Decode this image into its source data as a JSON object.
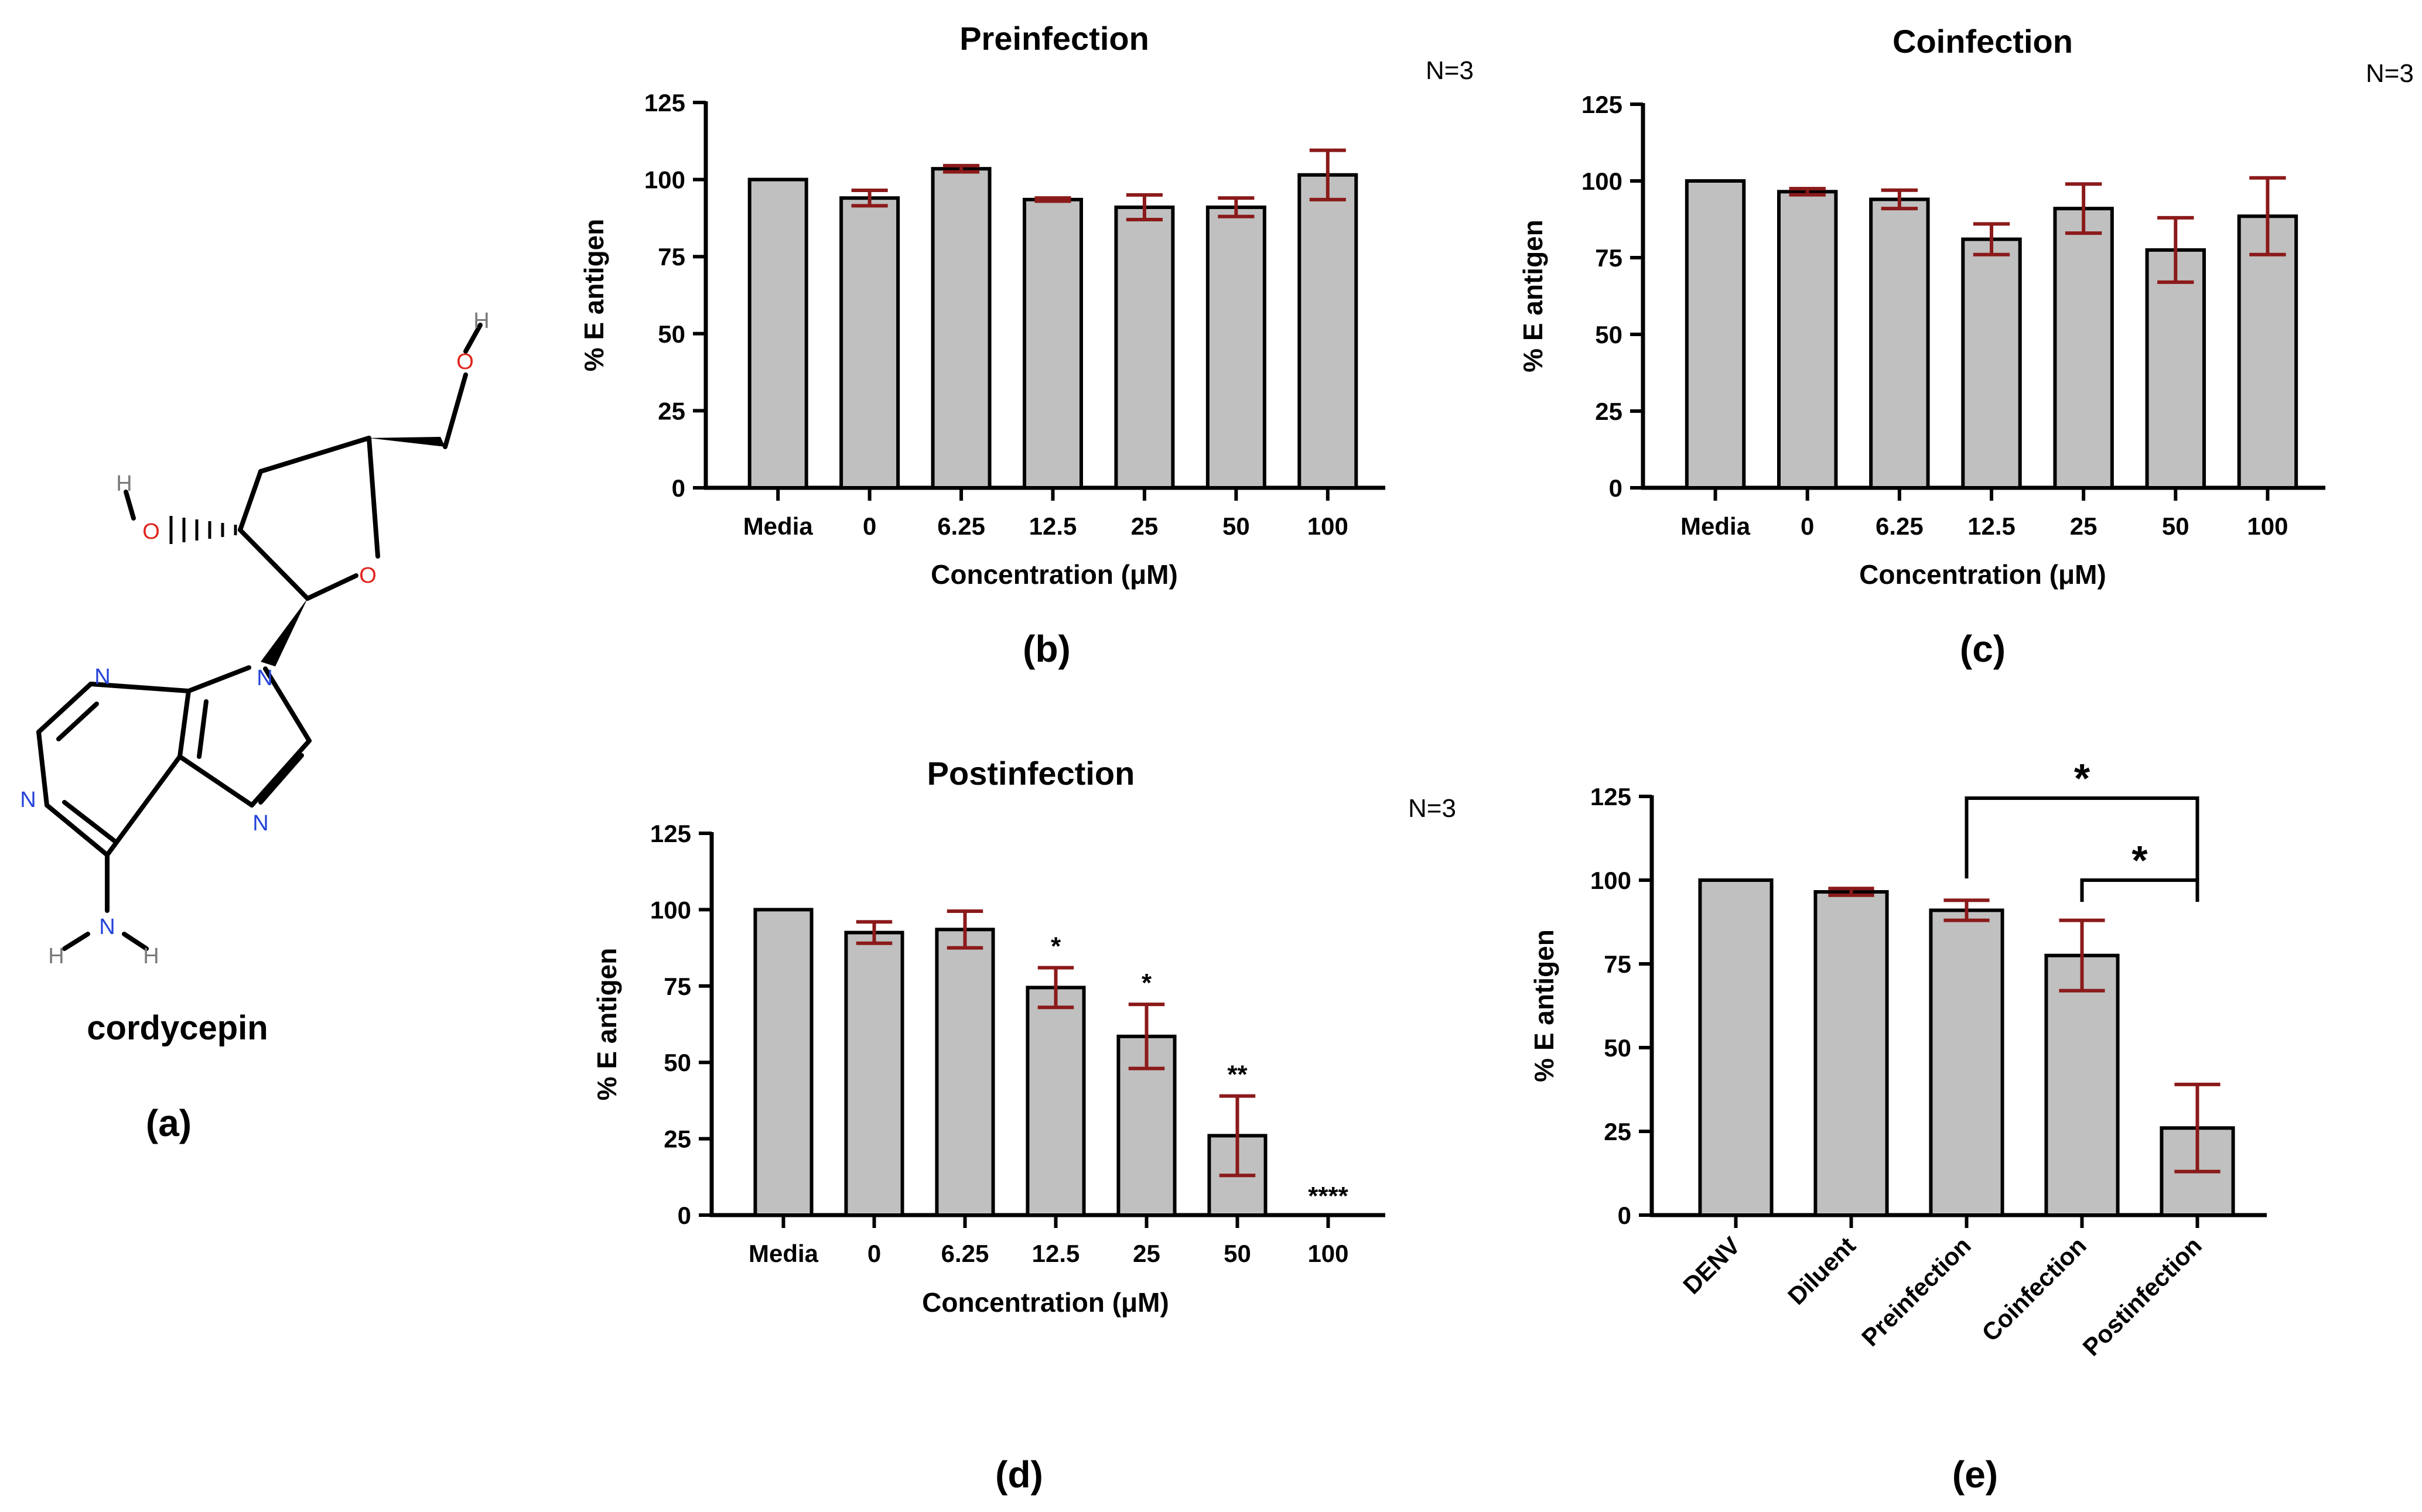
{
  "colors": {
    "bar_fill": "#c0c0c0",
    "bar_stroke": "#000000",
    "error_bar": "#8b1a1a",
    "axis": "#000000",
    "atom_O": "#e0241b",
    "atom_N": "#2342d9",
    "atom_H": "#7a7a7a"
  },
  "molecule": {
    "name": "cordycepin",
    "panel_label": "(a)",
    "atoms": {
      "O": "O",
      "N": "N",
      "H": "H"
    }
  },
  "chart_data": [
    {
      "id": "b",
      "type": "bar",
      "title": "Preinfection",
      "annotation": "N=3",
      "panel_label": "(b)",
      "xlabel": "Concentration (μM)",
      "ylabel": "% E antigen",
      "ylim": [
        0,
        125
      ],
      "yticks": [
        0,
        25,
        50,
        75,
        100,
        125
      ],
      "categories": [
        "Media",
        "0",
        "6.25",
        "12.5",
        "25",
        "50",
        "100"
      ],
      "values": [
        100,
        94,
        103.5,
        93.5,
        91,
        91,
        101.5
      ],
      "errors": [
        0,
        2.5,
        1,
        0.5,
        4,
        3,
        8
      ],
      "significance": [
        "",
        "",
        "",
        "",
        "",
        "",
        ""
      ]
    },
    {
      "id": "c",
      "type": "bar",
      "title": "Coinfection",
      "annotation": "N=3",
      "panel_label": "(c)",
      "xlabel": "Concentration (μM)",
      "ylabel": "% E antigen",
      "ylim": [
        0,
        125
      ],
      "yticks": [
        0,
        25,
        50,
        75,
        100,
        125
      ],
      "categories": [
        "Media",
        "0",
        "6.25",
        "12.5",
        "25",
        "50",
        "100"
      ],
      "values": [
        100,
        96.5,
        94,
        81,
        91,
        77.5,
        88.5
      ],
      "errors": [
        0,
        1,
        3,
        5,
        8,
        10.5,
        12.5
      ],
      "significance": [
        "",
        "",
        "",
        "",
        "",
        "",
        ""
      ]
    },
    {
      "id": "d",
      "type": "bar",
      "title": "Postinfection",
      "annotation": "N=3",
      "panel_label": "(d)",
      "xlabel": "Concentration (μM)",
      "ylabel": "% E antigen",
      "ylim": [
        0,
        125
      ],
      "yticks": [
        0,
        25,
        50,
        75,
        100,
        125
      ],
      "categories": [
        "Media",
        "0",
        "6.25",
        "12.5",
        "25",
        "50",
        "100"
      ],
      "values": [
        100,
        92.5,
        93.5,
        74.5,
        58.5,
        26,
        0
      ],
      "errors": [
        0,
        3.5,
        6,
        6.5,
        10.5,
        13,
        0
      ],
      "significance": [
        "",
        "",
        "",
        "*",
        "*",
        "**",
        "****"
      ]
    },
    {
      "id": "e",
      "type": "bar",
      "title": "",
      "panel_label": "(e)",
      "xlabel": "",
      "ylabel": "% E antigen",
      "ylim": [
        0,
        125
      ],
      "yticks": [
        0,
        25,
        50,
        75,
        100,
        125
      ],
      "categories": [
        "DENV",
        "Diluent",
        "Preinfection",
        "Coinfection",
        "Postinfection"
      ],
      "values": [
        100,
        96.5,
        91,
        77.5,
        26
      ],
      "errors": [
        0,
        1,
        3,
        10.5,
        13
      ],
      "comparisons": [
        {
          "from": 2,
          "to": 4,
          "label": "*"
        },
        {
          "from": 3,
          "to": 4,
          "label": "*"
        }
      ]
    }
  ]
}
